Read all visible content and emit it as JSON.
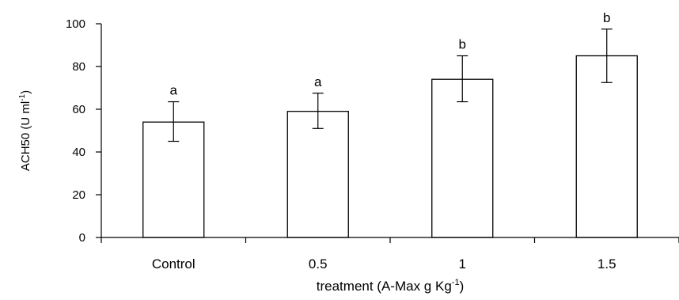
{
  "chart_data": {
    "type": "bar",
    "title": "",
    "xlabel": "treatment (A-Max g Kg",
    "xlabel_sup": "-1",
    "xlabel_end": ")",
    "ylabel": "ACH50 (U ml",
    "ylabel_sup": "-1",
    "ylabel_end": ")",
    "categories": [
      "Control",
      "0.5",
      "1",
      "1.5"
    ],
    "values": [
      54,
      59,
      74,
      85
    ],
    "error_low": [
      45,
      51,
      63.5,
      72.5
    ],
    "error_high": [
      63.5,
      67.5,
      85,
      97.5
    ],
    "significance_letters": [
      "a",
      "a",
      "b",
      "b"
    ],
    "ylim": [
      0,
      100
    ],
    "yticks": [
      0,
      20,
      40,
      60,
      80,
      100
    ],
    "grid": false,
    "legend": "none",
    "colors": {
      "bar_fill": "#ffffff",
      "bar_stroke": "#000000"
    }
  }
}
